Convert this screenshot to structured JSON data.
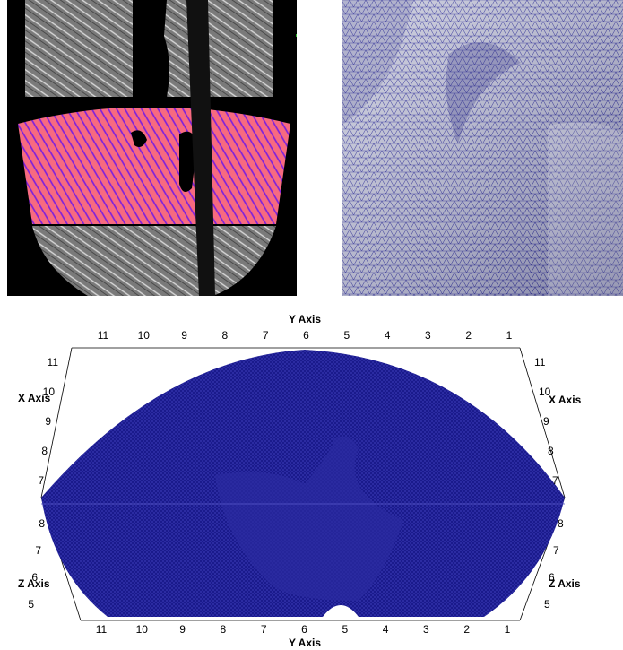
{
  "axes_view": {
    "top_axis_title": "Y Axis",
    "bottom_axis_title": "Y Axis",
    "left_x_axis_title": "X Axis",
    "right_x_axis_title": "X Axis",
    "left_z_axis_title": "Z Axis",
    "right_z_axis_title": "Z Axis",
    "top_y_ticks": [
      "11",
      "10",
      "9",
      "8",
      "7",
      "6",
      "5",
      "4",
      "3",
      "2",
      "1"
    ],
    "bottom_y_ticks": [
      "11",
      "10",
      "9",
      "8",
      "7",
      "6",
      "5",
      "4",
      "3",
      "2",
      "1"
    ],
    "left_x_ticks": [
      "11",
      "10",
      "9",
      "8",
      "7"
    ],
    "right_x_ticks": [
      "11",
      "10",
      "9",
      "8",
      "7"
    ],
    "left_z_ticks": [
      "8",
      "7",
      "6",
      "5"
    ],
    "right_z_ticks": [
      "8",
      "7",
      "6",
      "5"
    ]
  },
  "colors": {
    "mesh_blue": "#1a1a8c",
    "overlay_pink": "#f76a80",
    "overlay_purple": "#7a1ee0",
    "tissue_gray": "#8a8a8a"
  }
}
